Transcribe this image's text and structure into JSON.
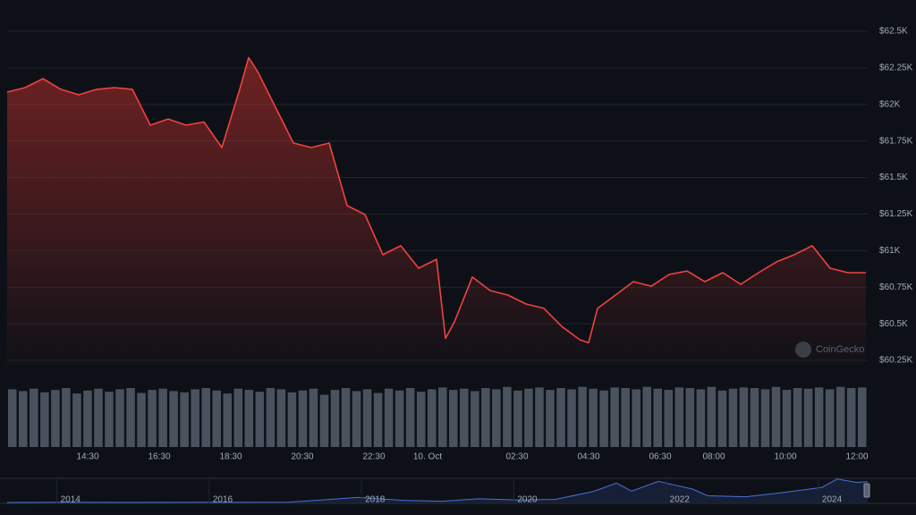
{
  "watermark": "CoinGecko",
  "chart_data": [
    {
      "type": "area",
      "color": "#f0423f",
      "x": [
        12.25,
        12.75,
        13.25,
        13.75,
        14.25,
        14.75,
        15.25,
        15.75,
        16.25,
        16.75,
        17.25,
        17.75,
        18.25,
        18.75,
        19.0,
        19.25,
        19.75,
        20.25,
        20.75,
        21.25,
        21.75,
        22.25,
        22.75,
        23.25,
        23.75,
        24.25,
        24.5,
        24.75,
        25.25,
        25.75,
        26.25,
        26.75,
        27.25,
        27.75,
        28.25,
        28.5,
        28.75,
        29.25,
        29.75,
        30.25,
        30.75,
        31.25,
        31.75,
        32.25,
        32.75,
        33.25,
        33.75,
        34.25,
        34.75,
        35.25,
        35.75,
        36.25
      ],
      "values": [
        62084,
        62115,
        62176,
        62103,
        62066,
        62103,
        62115,
        62103,
        61858,
        61900,
        61858,
        61880,
        61705,
        62103,
        62320,
        62225,
        61980,
        61736,
        61705,
        61736,
        61308,
        61247,
        60972,
        61033,
        60880,
        60941,
        60400,
        60513,
        60819,
        60727,
        60696,
        60635,
        60605,
        60482,
        60391,
        60370,
        60605,
        60696,
        60788,
        60757,
        60837,
        60861,
        60788,
        60849,
        60770,
        60849,
        60923,
        60972,
        61033,
        60880,
        60849,
        60849
      ],
      "xlim": [
        12.25,
        36.3
      ],
      "xticks": [
        {
          "value": 14.5,
          "label": "14:30"
        },
        {
          "value": 16.5,
          "label": "16:30"
        },
        {
          "value": 18.5,
          "label": "18:30"
        },
        {
          "value": 20.5,
          "label": "20:30"
        },
        {
          "value": 22.5,
          "label": "22:30"
        },
        {
          "value": 24,
          "label": "10. Oct"
        },
        {
          "value": 26.5,
          "label": "02:30"
        },
        {
          "value": 28.5,
          "label": "04:30"
        },
        {
          "value": 30.5,
          "label": "06:30"
        },
        {
          "value": 32,
          "label": "08:00"
        },
        {
          "value": 34,
          "label": "10:00"
        },
        {
          "value": 36,
          "label": "12:00"
        }
      ],
      "ylim": [
        60250,
        62500
      ],
      "yticks": [
        {
          "value": 60250,
          "label": "$60.25K"
        },
        {
          "value": 60500,
          "label": "$60.5K"
        },
        {
          "value": 60750,
          "label": "$60.75K"
        },
        {
          "value": 61000,
          "label": "$61K"
        },
        {
          "value": 61250,
          "label": "$61.25K"
        },
        {
          "value": 61500,
          "label": "$61.5K"
        },
        {
          "value": 61750,
          "label": "$61.75K"
        },
        {
          "value": 62000,
          "label": "$62K"
        },
        {
          "value": 62250,
          "label": "$62.25K"
        },
        {
          "value": 62500,
          "label": "$62.5K"
        }
      ],
      "grid": true
    },
    {
      "type": "bar",
      "color": "#4a525e",
      "ylim": [
        0,
        100
      ],
      "values": [
        95,
        92,
        96,
        90,
        94,
        97,
        88,
        93,
        96,
        91,
        95,
        97,
        89,
        94,
        96,
        92,
        90,
        95,
        97,
        93,
        88,
        96,
        94,
        91,
        97,
        95,
        90,
        93,
        96,
        86,
        94,
        97,
        92,
        95,
        89,
        96,
        93,
        97,
        91,
        95,
        98,
        94,
        96,
        92,
        97,
        95,
        99,
        93,
        96,
        98,
        94,
        97,
        95,
        99,
        96,
        93,
        98,
        97,
        95,
        99,
        96,
        94,
        98,
        97,
        95,
        99,
        93,
        96,
        98,
        97,
        95,
        99,
        94,
        97,
        96,
        98,
        95,
        99,
        97,
        98
      ]
    },
    {
      "type": "line",
      "color": "#4c6edb",
      "x": [
        2013.3,
        2014,
        2015,
        2016,
        2017,
        2017.9,
        2018.5,
        2019,
        2019.5,
        2020,
        2020.5,
        2021,
        2021.3,
        2021.5,
        2021.85,
        2022.3,
        2022.5,
        2023,
        2023.5,
        2024,
        2024.2,
        2024.45,
        2024.6
      ],
      "values": [
        100,
        800,
        250,
        430,
        1000,
        15000,
        6500,
        3700,
        11000,
        7200,
        9200,
        33000,
        58000,
        34000,
        63000,
        40000,
        20000,
        17000,
        30000,
        45000,
        70000,
        60000,
        62000
      ],
      "xlim": [
        2013.3,
        2024.6
      ],
      "xticks": [
        2014,
        2016,
        2018,
        2020,
        2022,
        2024
      ],
      "ylim": [
        0,
        80000
      ]
    }
  ]
}
